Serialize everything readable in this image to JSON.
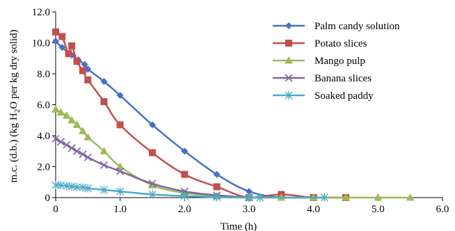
{
  "chart_data": {
    "type": "line",
    "xlabel": "Time (h)",
    "ylabel": "m.c. (d.b.) (kg H2O per kg dry solid)",
    "ylabel_parts": {
      "before": "m.c. (d.b.) (kg H",
      "sub": "2",
      "after": "O per kg dry solid)"
    },
    "xlim": [
      0,
      6
    ],
    "ylim": [
      0,
      12
    ],
    "xticks": [
      "0",
      "1.0",
      "2.0",
      "3.0",
      "4.0",
      "5.0",
      "6.0"
    ],
    "xtick_values": [
      0,
      1,
      2,
      3,
      4,
      5,
      6
    ],
    "yticks": [
      "0",
      "2.0",
      "4.0",
      "6.0",
      "8.0",
      "10.0",
      "12.0"
    ],
    "ytick_values": [
      0,
      2,
      4,
      6,
      8,
      10,
      12
    ],
    "grid": false,
    "legend": "top-right",
    "series": [
      {
        "name": "Palm candy solution",
        "color": "#4472c4",
        "marker": "diamond",
        "x": [
          0,
          0.1,
          0.25,
          0.35,
          0.45,
          0.5,
          0.75,
          1.0,
          1.5,
          2.0,
          2.5,
          3.0,
          3.5,
          4.0,
          4.5
        ],
        "y": [
          10.1,
          9.7,
          9.2,
          8.9,
          8.6,
          8.3,
          7.5,
          6.6,
          4.7,
          3.0,
          1.5,
          0.4,
          0.0,
          0.0,
          0.0
        ]
      },
      {
        "name": "Potato slices",
        "color": "#c0504d",
        "marker": "square",
        "x": [
          0,
          0.1,
          0.2,
          0.25,
          0.33,
          0.42,
          0.5,
          0.75,
          1.0,
          1.5,
          2.0,
          2.5,
          3.0,
          3.5,
          4.0,
          4.5
        ],
        "y": [
          10.7,
          10.4,
          9.3,
          9.8,
          8.8,
          8.2,
          7.6,
          6.2,
          4.7,
          2.9,
          1.5,
          0.7,
          0.0,
          0.2,
          0.0,
          0.0
        ]
      },
      {
        "name": "Mango pulp",
        "color": "#9bbb59",
        "marker": "triangle",
        "x": [
          0,
          0.08,
          0.17,
          0.25,
          0.33,
          0.42,
          0.5,
          0.75,
          1.0,
          1.5,
          2.0,
          2.5,
          3.0,
          3.5,
          4.0,
          4.5,
          5.0,
          5.5
        ],
        "y": [
          5.7,
          5.5,
          5.3,
          5.0,
          4.7,
          4.3,
          3.9,
          3.0,
          2.0,
          0.8,
          0.3,
          0.1,
          0.0,
          0.0,
          0.0,
          0.0,
          0.0,
          0.0
        ]
      },
      {
        "name": "Banana slices",
        "color": "#8064a2",
        "marker": "x",
        "x": [
          0,
          0.08,
          0.17,
          0.25,
          0.33,
          0.42,
          0.5,
          0.75,
          1.0,
          1.5,
          2.0,
          2.5,
          3.0
        ],
        "y": [
          3.8,
          3.6,
          3.4,
          3.2,
          3.0,
          2.8,
          2.6,
          2.1,
          1.7,
          0.9,
          0.4,
          0.15,
          0.0
        ]
      },
      {
        "name": "Soaked paddy",
        "color": "#4bacc6",
        "marker": "asterisk",
        "x": [
          0,
          0.08,
          0.17,
          0.25,
          0.33,
          0.42,
          0.5,
          0.75,
          1.0,
          1.5,
          2.0,
          2.5,
          3.0,
          3.17,
          4.17
        ],
        "y": [
          0.8,
          0.8,
          0.75,
          0.72,
          0.68,
          0.65,
          0.6,
          0.5,
          0.4,
          0.2,
          0.1,
          0.03,
          0.0,
          0.0,
          0.0
        ]
      }
    ]
  }
}
